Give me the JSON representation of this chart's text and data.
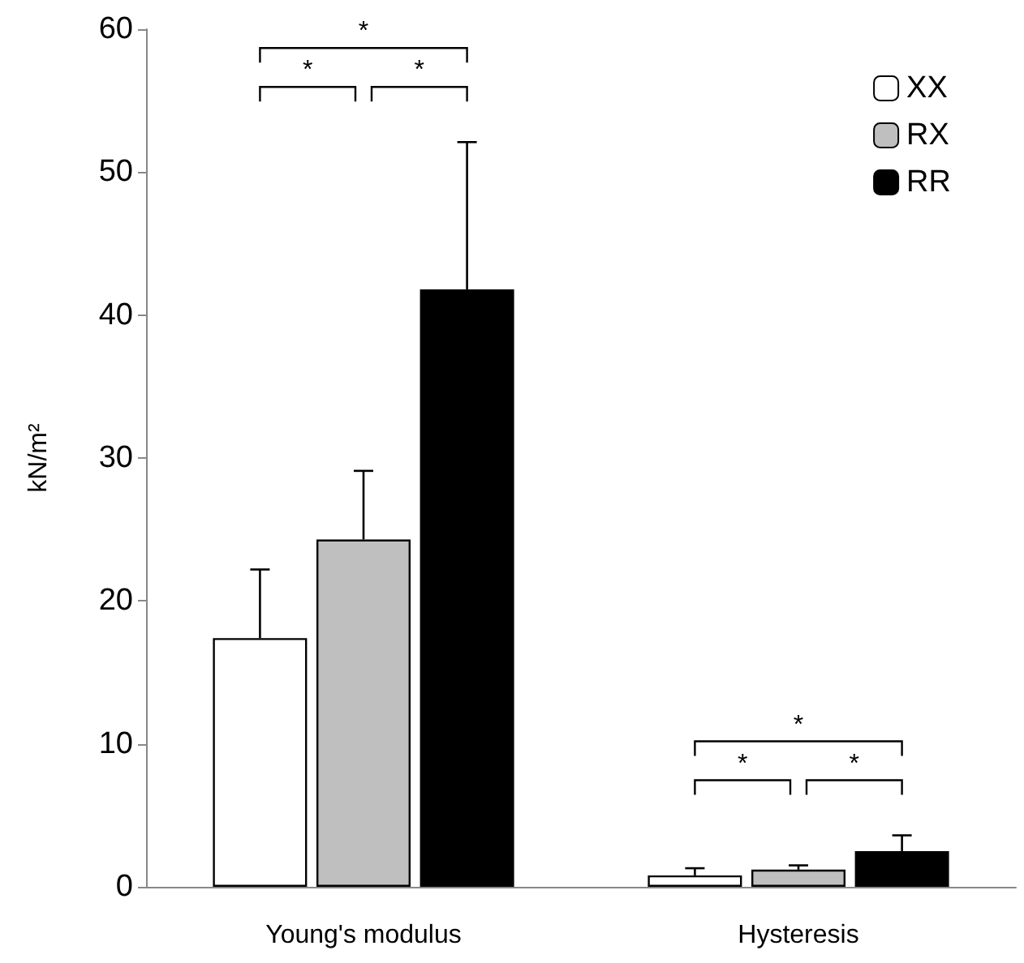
{
  "chart_data": {
    "type": "bar",
    "ylabel": "kN/m²",
    "categories": [
      "Young's modulus",
      "Hysteresis"
    ],
    "series": [
      {
        "name": "XX",
        "color": "#ffffff",
        "values": [
          17.4,
          0.8
        ],
        "errors": [
          [
            17.4,
            22.2
          ],
          [
            0.8,
            1.3
          ]
        ]
      },
      {
        "name": "RX",
        "color": "#bfbfbf",
        "values": [
          24.3,
          1.2
        ],
        "errors": [
          [
            24.3,
            29.1
          ],
          [
            1.2,
            1.5
          ]
        ]
      },
      {
        "name": "RR",
        "color": "#000000",
        "values": [
          41.8,
          2.5
        ],
        "errors": [
          [
            41.8,
            52.1
          ],
          [
            2.5,
            3.6
          ]
        ]
      }
    ],
    "ylim": [
      0,
      60
    ],
    "yticks": [
      0,
      10,
      20,
      30,
      40,
      50,
      60
    ],
    "grid": false,
    "legend": "top right",
    "annotations": [
      "*",
      "*",
      "*",
      "*",
      "*",
      "*"
    ]
  }
}
